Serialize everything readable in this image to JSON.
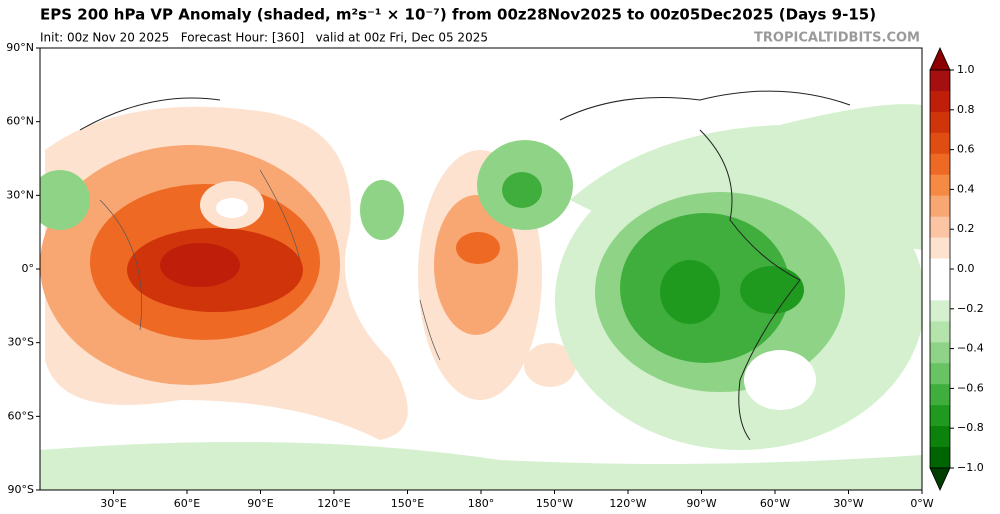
{
  "header": {
    "title": "EPS 200 hPa VP Anomaly (shaded, m²s⁻¹ × 10⁻⁷) from 00z28Nov2025 to 00z05Dec2025 (Days 9-15)",
    "init": "Init: 00z Nov 20 2025   Forecast Hour: [360]   valid at 00z Fri, Dec 05 2025",
    "watermark": "TROPICALTIDBITS.COM"
  },
  "map": {
    "xlim": [
      0,
      360
    ],
    "ylim": [
      -90,
      90
    ],
    "lat_ticks": [
      {
        "value": 90,
        "label": "90°N"
      },
      {
        "value": 60,
        "label": "60°N"
      },
      {
        "value": 30,
        "label": "30°N"
      },
      {
        "value": 0,
        "label": "0°"
      },
      {
        "value": -30,
        "label": "30°S"
      },
      {
        "value": -60,
        "label": "60°S"
      },
      {
        "value": -90,
        "label": "90°S"
      }
    ],
    "lon_ticks": [
      {
        "value": 30,
        "label": "30°E"
      },
      {
        "value": 60,
        "label": "60°E"
      },
      {
        "value": 90,
        "label": "90°E"
      },
      {
        "value": 120,
        "label": "120°E"
      },
      {
        "value": 150,
        "label": "150°E"
      },
      {
        "value": 180,
        "label": "180°"
      },
      {
        "value": 210,
        "label": "150°W"
      },
      {
        "value": 240,
        "label": "120°W"
      },
      {
        "value": 270,
        "label": "90°W"
      },
      {
        "value": 300,
        "label": "60°W"
      },
      {
        "value": 330,
        "label": "30°W"
      },
      {
        "value": 360,
        "label": "0°W"
      }
    ],
    "colorbar": {
      "lim": [
        -1,
        1
      ],
      "ticks": [
        {
          "value": 1,
          "label": "1.0"
        },
        0.8,
        0.6,
        0.4,
        0.2,
        {
          "value": 0,
          "label": "0.0"
        },
        {
          "value": -0.2,
          "label": "−0.2"
        },
        {
          "value": -0.4,
          "label": "−0.4"
        },
        {
          "value": -0.6,
          "label": "−0.6"
        },
        {
          "value": -0.8,
          "label": "−0.8"
        },
        {
          "value": -1,
          "label": "−1.0"
        }
      ],
      "colors": [
        "#8b0000",
        "#a50f0f",
        "#bf1f0a",
        "#d0340a",
        "#e04d12",
        "#ee6a24",
        "#f58a45",
        "#f8a672",
        "#fbc4a2",
        "#fde2d0",
        "#ffffff",
        "#ffffff",
        "#d4f0cf",
        "#b4e4ac",
        "#8fd486",
        "#69c362",
        "#40ae3c",
        "#1f9a1f",
        "#0b820b",
        "#006400",
        "#003d00"
      ]
    }
  }
}
